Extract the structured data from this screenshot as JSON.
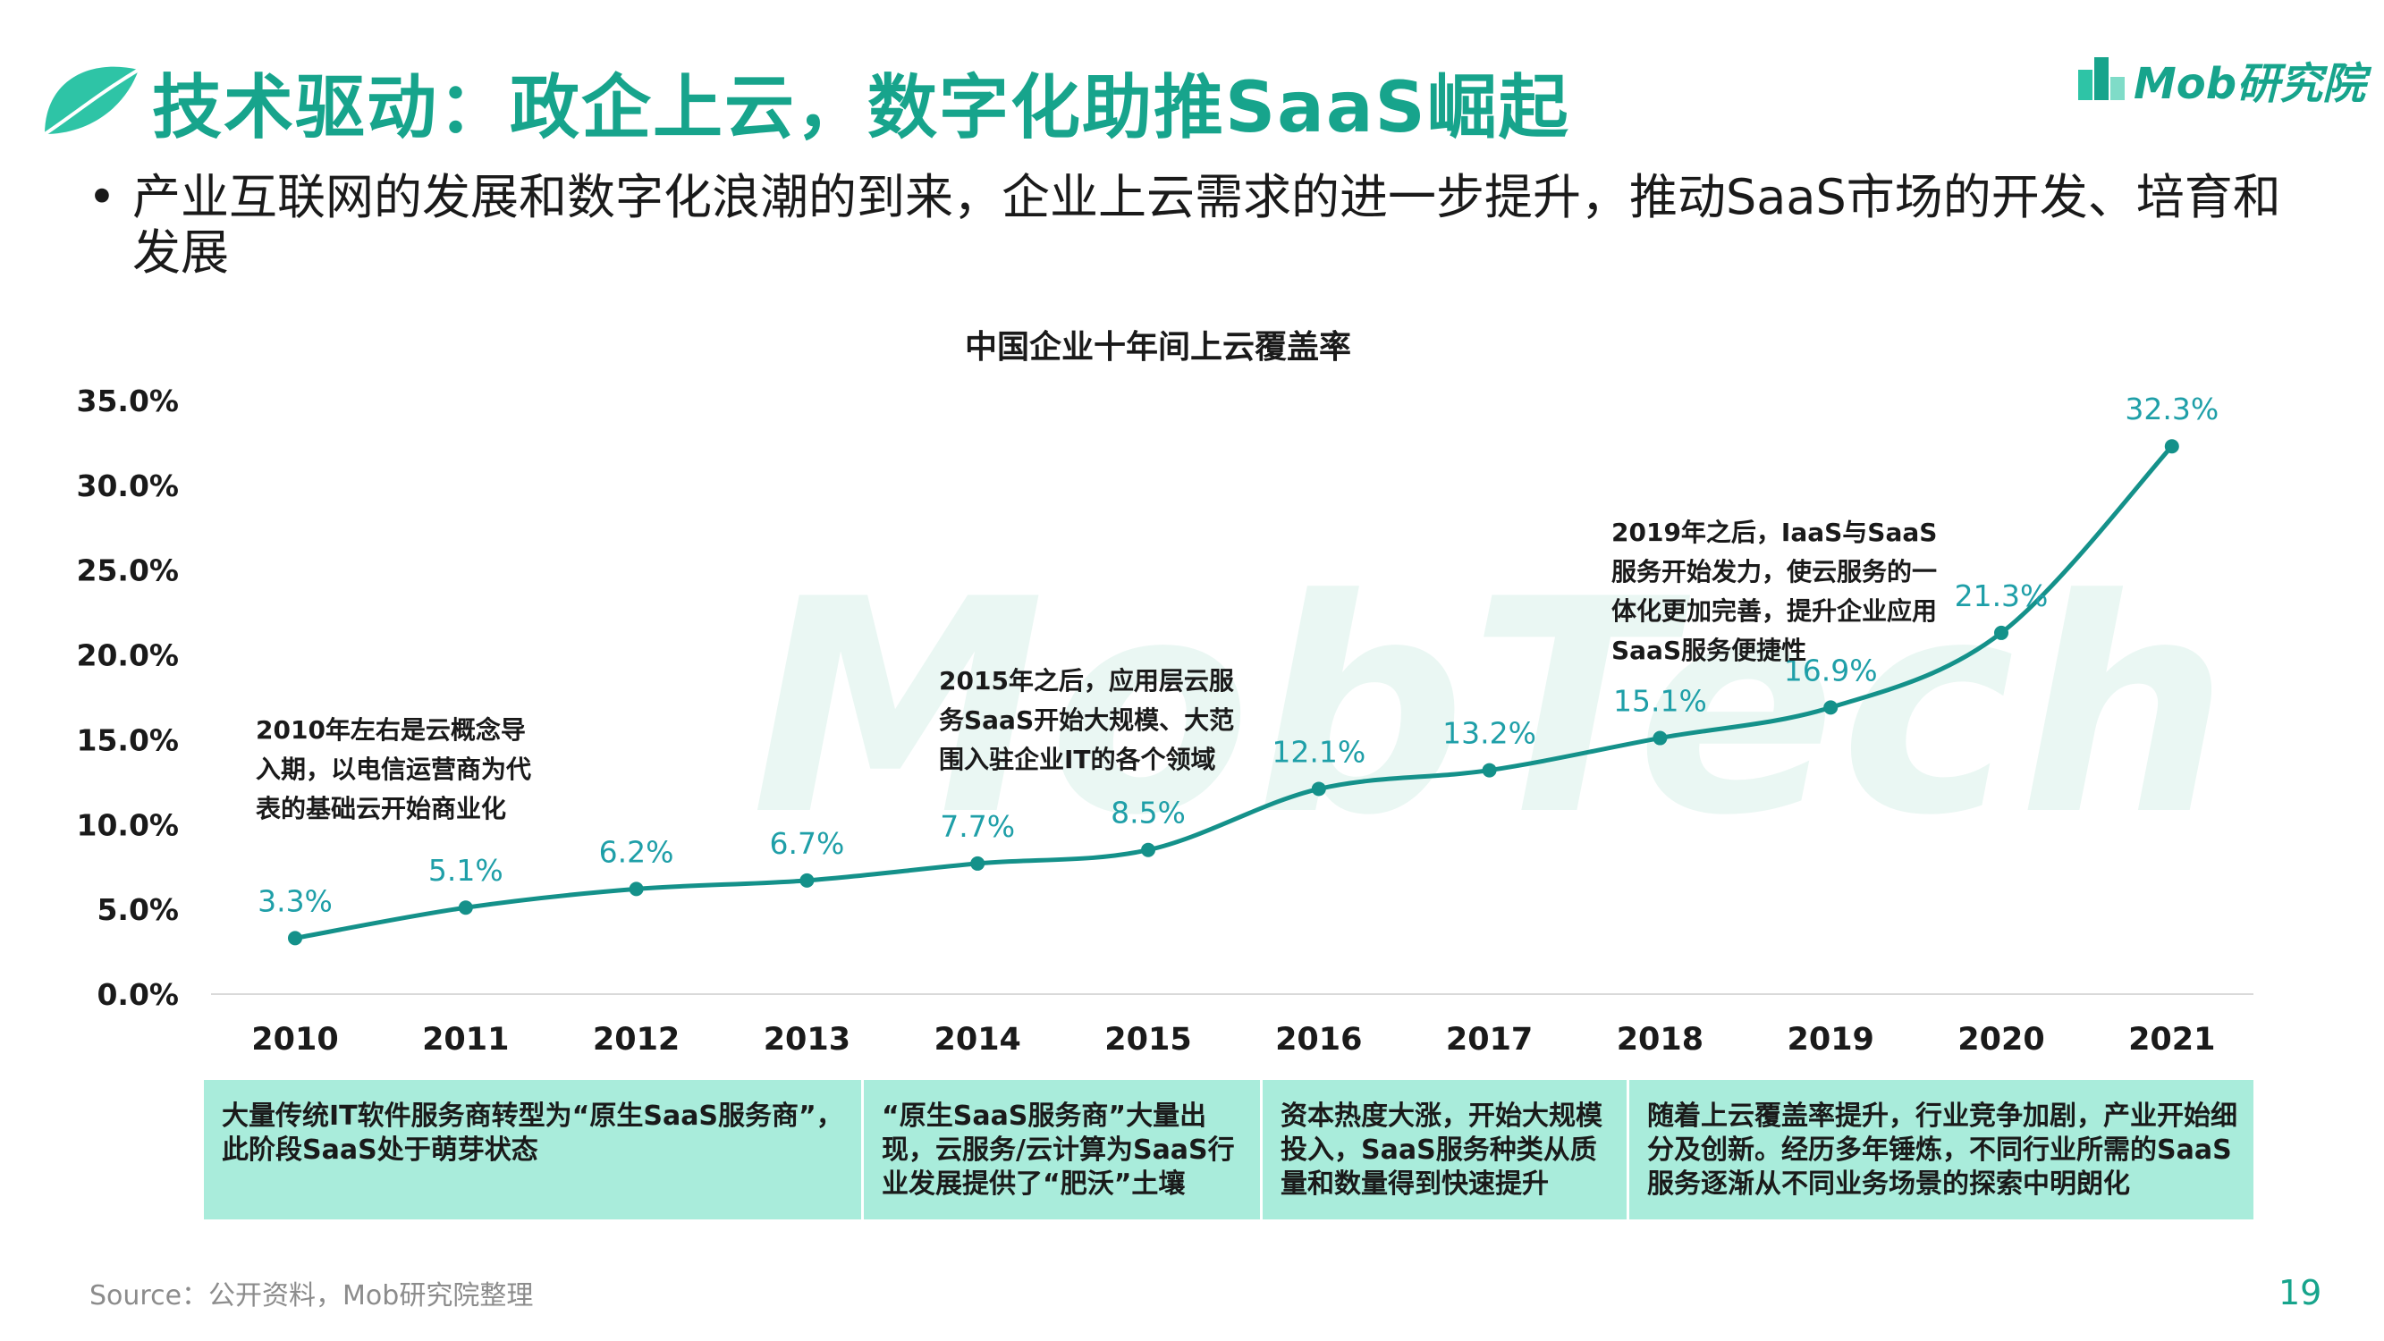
{
  "header": {
    "title": "技术驱动：政企上云，数字化助推SaaS崛起",
    "logo_text": "Mob研究院"
  },
  "watermark": "MobTech",
  "bullet": {
    "text": "产业互联网的发展和数字化浪潮的到来，企业上云需求的进一步提升，推动SaaS市场的开发、培育和发展"
  },
  "colors": {
    "accent": "#17a48c",
    "line": "#14918a",
    "band": "#a9ecdb",
    "label": "#1f9fa8"
  },
  "chart_data": {
    "type": "line",
    "title": "中国企业十年间上云覆盖率",
    "categories": [
      "2010",
      "2011",
      "2012",
      "2013",
      "2014",
      "2015",
      "2016",
      "2017",
      "2018",
      "2019",
      "2020",
      "2021"
    ],
    "values": [
      3.3,
      5.1,
      6.2,
      6.7,
      7.7,
      8.5,
      12.1,
      13.2,
      15.1,
      16.9,
      21.3,
      32.3
    ],
    "value_labels": [
      "3.3%",
      "5.1%",
      "6.2%",
      "6.7%",
      "7.7%",
      "8.5%",
      "12.1%",
      "13.2%",
      "15.1%",
      "16.9%",
      "21.3%",
      "32.3%"
    ],
    "yticks": [
      "0.0%",
      "5.0%",
      "10.0%",
      "15.0%",
      "20.0%",
      "25.0%",
      "30.0%",
      "35.0%"
    ],
    "ylim": [
      0,
      35
    ],
    "xlabel": "",
    "ylabel": "",
    "grid": false,
    "annotations": [
      "2010年左右是云概念导入期，以电信运营商为代表的基础云开始商业化",
      "2015年之后，应用层云服务SaaS开始大规模、大范围入驻企业IT的各个领域",
      "2019年之后，IaaS与SaaS服务开始发力，使云服务的一体化更加完善，提升企业应用SaaS服务便捷性"
    ]
  },
  "stages": [
    "大量传统IT软件服务商转型为“原生SaaS服务商”，此阶段SaaS处于萌芽状态",
    "“原生SaaS服务商”大量出现，云服务/云计算为SaaS行业发展提供了“肥沃”土壤",
    "资本热度大涨，开始大规模投入，SaaS服务种类从质量和数量得到快速提升",
    "随着上云覆盖率提升，行业竞争加剧，产业开始细分及创新。经历多年锤炼，不同行业所需的SaaS服务逐渐从不同业务场景的探索中明朗化"
  ],
  "footer": {
    "source": "Source：公开资料，Mob研究院整理",
    "page_number": "19"
  }
}
